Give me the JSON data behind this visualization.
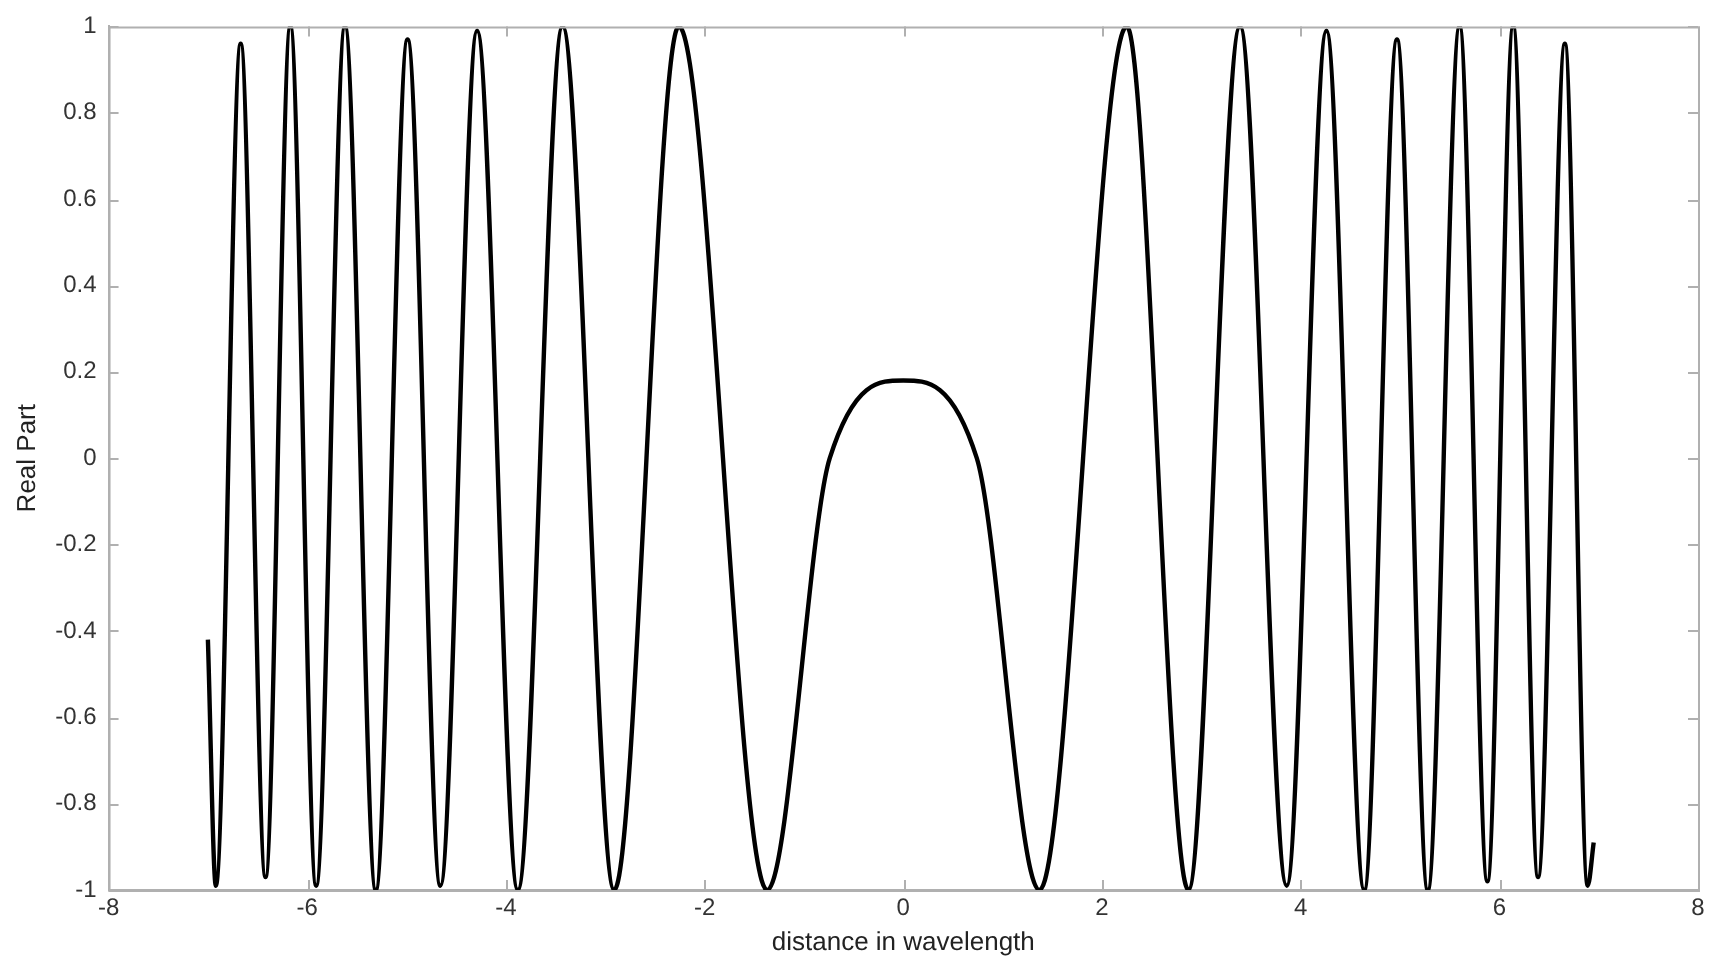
{
  "chart_data": {
    "type": "line",
    "xlabel": "distance in wavelength",
    "ylabel": "Real Part",
    "xlim": [
      -8,
      8
    ],
    "xticks": [
      -8,
      -6,
      -4,
      -2,
      0,
      2,
      4,
      6,
      8
    ],
    "ylim": [
      -1,
      1
    ],
    "yticks": [
      -1,
      -0.8,
      -0.6,
      -0.4,
      -0.2,
      0,
      0.2,
      0.4,
      0.6,
      0.8,
      1
    ],
    "grid": false,
    "legend": false,
    "marker": "none",
    "line_style": "solid",
    "series": [
      {
        "color": "#000000",
        "x": [
          -7.0,
          -6.92,
          -6.67,
          -6.42,
          -6.17,
          -5.91,
          -5.62,
          -5.31,
          -4.99,
          -4.66,
          -4.29,
          -3.88,
          -3.43,
          -2.91,
          -2.26,
          -1.37,
          -0.74,
          0,
          0.74,
          1.37,
          2.25,
          2.87,
          3.39,
          3.86,
          4.26,
          4.64,
          4.97,
          5.28,
          5.6,
          5.88,
          6.14,
          6.39,
          6.66,
          6.89,
          6.95
        ],
        "values": [
          -0.42,
          -0.99,
          0.96,
          -0.97,
          1,
          -0.99,
          1,
          -1,
          0.97,
          -0.99,
          0.99,
          -1,
          1,
          -1,
          1,
          -1,
          0,
          0.18,
          0,
          -1,
          1,
          -1,
          1,
          -0.99,
          0.99,
          -1,
          0.97,
          -1,
          1,
          -0.98,
          1,
          -0.97,
          0.96,
          -0.99,
          -0.89
        ]
      }
    ]
  }
}
